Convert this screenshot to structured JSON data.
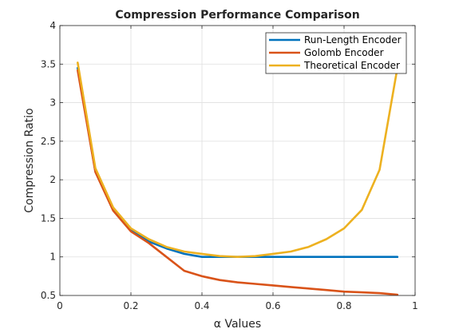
{
  "chart_data": {
    "type": "line",
    "title": "Compression Performance Comparison",
    "xlabel": "α Values",
    "ylabel": "Compression Ratio",
    "xlim": [
      0,
      1
    ],
    "ylim": [
      0.5,
      4
    ],
    "xticks": [
      "0",
      "0.2",
      "0.4",
      "0.6",
      "0.8",
      "1"
    ],
    "xtick_values": [
      0,
      0.2,
      0.4,
      0.6,
      0.8,
      1
    ],
    "yticks": [
      "0.5",
      "1",
      "1.5",
      "2",
      "2.5",
      "3",
      "3.5",
      "4"
    ],
    "ytick_values": [
      0.5,
      1,
      1.5,
      2,
      2.5,
      3,
      3.5,
      4
    ],
    "grid": true,
    "legend_position": "top-right",
    "x": [
      0.05,
      0.1,
      0.15,
      0.2,
      0.25,
      0.3,
      0.35,
      0.4,
      0.45,
      0.5,
      0.55,
      0.6,
      0.65,
      0.7,
      0.75,
      0.8,
      0.85,
      0.9,
      0.95
    ],
    "series": [
      {
        "name": "Run-Length Encoder",
        "color": "#0072BD",
        "values": [
          3.45,
          2.11,
          1.61,
          1.35,
          1.2,
          1.11,
          1.04,
          1.0,
          1.0,
          1.0,
          1.0,
          1.0,
          1.0,
          1.0,
          1.0,
          1.0,
          1.0,
          1.0,
          1.0
        ]
      },
      {
        "name": "Golomb Encoder",
        "color": "#D95319",
        "values": [
          3.42,
          2.1,
          1.6,
          1.33,
          1.18,
          1.0,
          0.82,
          0.75,
          0.7,
          0.67,
          0.65,
          0.63,
          0.61,
          0.59,
          0.57,
          0.55,
          0.54,
          0.53,
          0.51
        ]
      },
      {
        "name": "Theoretical Encoder",
        "color": "#EDB120",
        "values": [
          3.52,
          2.15,
          1.64,
          1.37,
          1.23,
          1.13,
          1.07,
          1.04,
          1.01,
          1.0,
          1.01,
          1.04,
          1.07,
          1.13,
          1.23,
          1.37,
          1.61,
          2.13,
          3.45
        ]
      }
    ]
  }
}
